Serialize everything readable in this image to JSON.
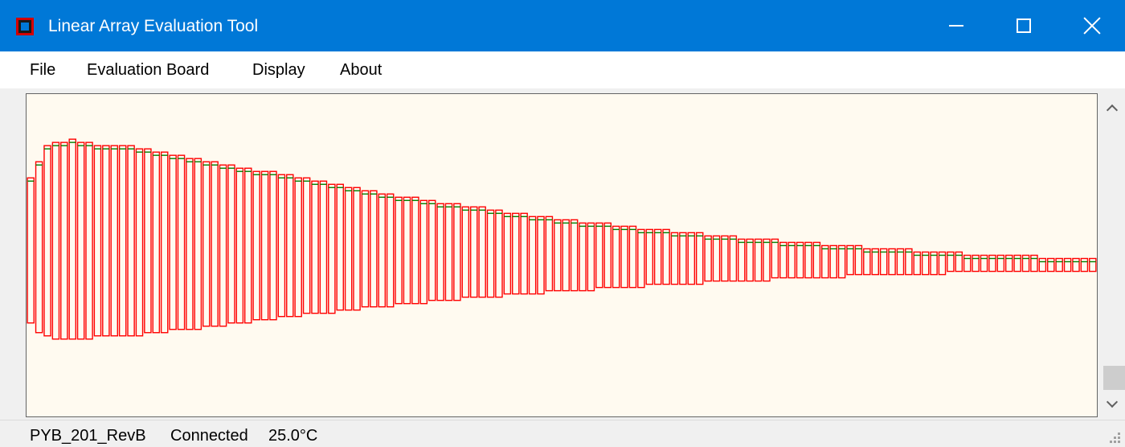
{
  "window": {
    "title": "Linear Array Evaluation Tool",
    "icon": "app-icon",
    "controls": [
      "minimize-icon",
      "maximize-icon",
      "close-icon"
    ]
  },
  "menu": {
    "items": [
      {
        "label": "File"
      },
      {
        "label": "Evaluation Board"
      },
      {
        "label": "Display"
      },
      {
        "label": "About"
      }
    ]
  },
  "status": {
    "board": "PYB_201_RevB",
    "connection": "Connected",
    "temperature": "25.0°C"
  },
  "colors": {
    "titlebar": "#0078d7",
    "plot_background": "#fffaf0",
    "bar_outline": "#ff0000",
    "level_line": "#007f00"
  },
  "chart_data": {
    "type": "bar",
    "description_series": "pixel-element amplitude range",
    "element_count": 128,
    "series": [
      {
        "values_top": [
          0.74,
          0.79,
          0.84,
          0.85,
          0.85,
          0.86,
          0.85,
          0.85,
          0.84,
          0.84,
          0.84,
          0.84,
          0.84,
          0.83,
          0.83,
          0.82,
          0.82,
          0.81,
          0.81,
          0.8,
          0.8,
          0.79,
          0.79,
          0.78,
          0.78,
          0.77,
          0.77,
          0.76,
          0.76,
          0.76,
          0.75,
          0.75,
          0.74,
          0.74,
          0.73,
          0.73,
          0.72,
          0.72,
          0.71,
          0.71,
          0.7,
          0.7,
          0.69,
          0.69,
          0.68,
          0.68,
          0.68,
          0.67,
          0.67,
          0.66,
          0.66,
          0.66,
          0.65,
          0.65,
          0.65,
          0.64,
          0.64,
          0.63,
          0.63,
          0.63,
          0.62,
          0.62,
          0.62,
          0.61,
          0.61,
          0.61,
          0.6,
          0.6,
          0.6,
          0.6,
          0.59,
          0.59,
          0.59,
          0.58,
          0.58,
          0.58,
          0.58,
          0.57,
          0.57,
          0.57,
          0.57,
          0.56,
          0.56,
          0.56,
          0.56,
          0.55,
          0.55,
          0.55,
          0.55,
          0.55,
          0.54,
          0.54,
          0.54,
          0.54,
          0.54,
          0.53,
          0.53,
          0.53,
          0.53,
          0.53,
          0.52,
          0.52,
          0.52,
          0.52,
          0.52,
          0.52,
          0.51,
          0.51,
          0.51,
          0.51,
          0.51,
          0.51,
          0.5,
          0.5,
          0.5,
          0.5,
          0.5,
          0.5,
          0.5,
          0.5,
          0.5,
          0.49,
          0.49,
          0.49,
          0.49,
          0.49,
          0.49,
          0.49
        ],
        "values_bottom": [
          0.29,
          0.26,
          0.25,
          0.24,
          0.24,
          0.24,
          0.24,
          0.24,
          0.25,
          0.25,
          0.25,
          0.25,
          0.25,
          0.25,
          0.26,
          0.26,
          0.26,
          0.27,
          0.27,
          0.27,
          0.27,
          0.28,
          0.28,
          0.28,
          0.29,
          0.29,
          0.29,
          0.3,
          0.3,
          0.3,
          0.31,
          0.31,
          0.31,
          0.32,
          0.32,
          0.32,
          0.32,
          0.33,
          0.33,
          0.33,
          0.34,
          0.34,
          0.34,
          0.34,
          0.35,
          0.35,
          0.35,
          0.35,
          0.36,
          0.36,
          0.36,
          0.36,
          0.37,
          0.37,
          0.37,
          0.37,
          0.37,
          0.38,
          0.38,
          0.38,
          0.38,
          0.38,
          0.39,
          0.39,
          0.39,
          0.39,
          0.39,
          0.39,
          0.4,
          0.4,
          0.4,
          0.4,
          0.4,
          0.4,
          0.41,
          0.41,
          0.41,
          0.41,
          0.41,
          0.41,
          0.41,
          0.42,
          0.42,
          0.42,
          0.42,
          0.42,
          0.42,
          0.42,
          0.42,
          0.43,
          0.43,
          0.43,
          0.43,
          0.43,
          0.43,
          0.43,
          0.43,
          0.43,
          0.44,
          0.44,
          0.44,
          0.44,
          0.44,
          0.44,
          0.44,
          0.44,
          0.44,
          0.44,
          0.44,
          0.44,
          0.45,
          0.45,
          0.45,
          0.45,
          0.45,
          0.45,
          0.45,
          0.45,
          0.45,
          0.45,
          0.45,
          0.45,
          0.45,
          0.45,
          0.45,
          0.45,
          0.45,
          0.45
        ]
      }
    ],
    "ylim": [
      0,
      1
    ],
    "grid": false
  }
}
